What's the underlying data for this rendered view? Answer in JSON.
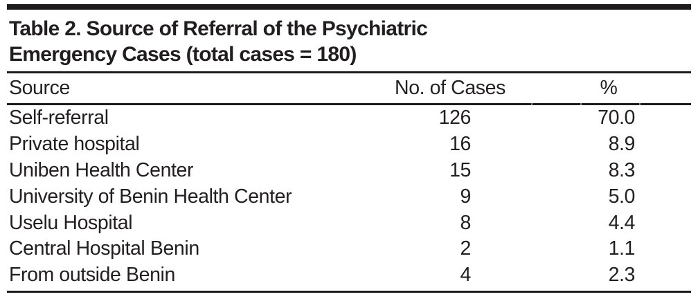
{
  "table": {
    "title": {
      "line1": "Table 2. Source of Referral of the Psychiatric",
      "line2": "Emergency Cases (total cases = 180)"
    },
    "headers": {
      "source": "Source",
      "cases": "No. of Cases",
      "percent": "%"
    },
    "rows": [
      {
        "source": "Self-referral",
        "cases": "126",
        "percent": "70.0"
      },
      {
        "source": "Private hospital",
        "cases": "16",
        "percent": "8.9"
      },
      {
        "source": "Uniben Health Center",
        "cases": "15",
        "percent": "8.3"
      },
      {
        "source": "University of Benin Health Center",
        "cases": "9",
        "percent": "5.0"
      },
      {
        "source": "Uselu Hospital",
        "cases": "8",
        "percent": "4.4"
      },
      {
        "source": "Central Hospital Benin",
        "cases": "2",
        "percent": "1.1"
      },
      {
        "source": "From outside Benin",
        "cases": "4",
        "percent": "2.3"
      }
    ]
  },
  "colors": {
    "text": "#231f20",
    "rule": "#1d1b1c",
    "background": "#ffffff"
  }
}
